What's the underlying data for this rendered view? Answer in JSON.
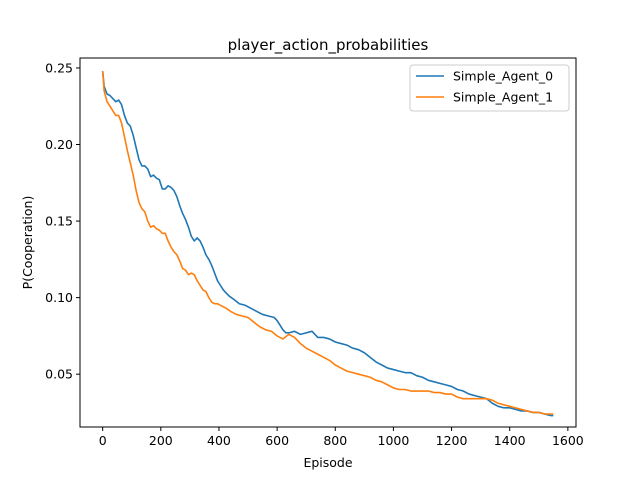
{
  "chart_data": {
    "type": "line",
    "title": "player_action_probabilities",
    "xlabel": "Episode",
    "ylabel": "P(Cooperation)",
    "xlim": [
      -78,
      1628
    ],
    "ylim": [
      0.0155,
      0.2565
    ],
    "xticks": [
      0,
      200,
      400,
      600,
      800,
      1000,
      1200,
      1400,
      1600
    ],
    "yticks": [
      0.05,
      0.1,
      0.15,
      0.2,
      0.25
    ],
    "xtick_labels": [
      "0",
      "200",
      "400",
      "600",
      "800",
      "1000",
      "1200",
      "1400",
      "1600"
    ],
    "ytick_labels": [
      "0.05",
      "0.10",
      "0.15",
      "0.20",
      "0.25"
    ],
    "grid": false,
    "legend_position": "top-right",
    "series": [
      {
        "name": "Simple_Agent_0",
        "color": "#1f77b4",
        "x": [
          0,
          5,
          15,
          25,
          35,
          45,
          55,
          65,
          75,
          85,
          95,
          105,
          115,
          125,
          135,
          145,
          155,
          165,
          175,
          185,
          195,
          205,
          215,
          225,
          235,
          245,
          255,
          265,
          275,
          285,
          295,
          305,
          315,
          325,
          335,
          345,
          355,
          365,
          375,
          385,
          395,
          405,
          415,
          425,
          435,
          450,
          470,
          490,
          510,
          530,
          550,
          570,
          590,
          600,
          610,
          620,
          630,
          640,
          660,
          680,
          700,
          720,
          740,
          760,
          780,
          800,
          820,
          840,
          860,
          880,
          900,
          920,
          940,
          960,
          980,
          1000,
          1020,
          1040,
          1060,
          1080,
          1100,
          1120,
          1140,
          1160,
          1180,
          1200,
          1220,
          1240,
          1260,
          1280,
          1300,
          1320,
          1340,
          1360,
          1380,
          1400,
          1420,
          1440,
          1460,
          1480,
          1500,
          1520,
          1540,
          1550
        ],
        "values": [
          0.248,
          0.238,
          0.233,
          0.232,
          0.23,
          0.228,
          0.229,
          0.226,
          0.219,
          0.214,
          0.212,
          0.206,
          0.198,
          0.19,
          0.186,
          0.186,
          0.184,
          0.179,
          0.18,
          0.178,
          0.177,
          0.171,
          0.171,
          0.173,
          0.172,
          0.17,
          0.166,
          0.16,
          0.155,
          0.151,
          0.146,
          0.14,
          0.137,
          0.139,
          0.137,
          0.133,
          0.128,
          0.125,
          0.121,
          0.116,
          0.111,
          0.108,
          0.105,
          0.103,
          0.101,
          0.099,
          0.096,
          0.095,
          0.093,
          0.091,
          0.089,
          0.088,
          0.087,
          0.085,
          0.082,
          0.079,
          0.077,
          0.077,
          0.078,
          0.076,
          0.077,
          0.078,
          0.074,
          0.074,
          0.073,
          0.071,
          0.07,
          0.069,
          0.067,
          0.066,
          0.064,
          0.061,
          0.058,
          0.056,
          0.054,
          0.053,
          0.052,
          0.051,
          0.051,
          0.049,
          0.048,
          0.046,
          0.045,
          0.044,
          0.043,
          0.042,
          0.04,
          0.039,
          0.037,
          0.036,
          0.035,
          0.034,
          0.031,
          0.029,
          0.028,
          0.028,
          0.027,
          0.026,
          0.026,
          0.025,
          0.025,
          0.024,
          0.023,
          0.023
        ]
      },
      {
        "name": "Simple_Agent_1",
        "color": "#ff7f0e",
        "x": [
          0,
          5,
          15,
          25,
          35,
          45,
          55,
          65,
          75,
          85,
          95,
          105,
          115,
          125,
          135,
          145,
          155,
          165,
          175,
          185,
          195,
          205,
          215,
          225,
          235,
          245,
          255,
          265,
          275,
          285,
          295,
          305,
          315,
          325,
          335,
          345,
          355,
          365,
          375,
          385,
          395,
          405,
          415,
          425,
          440,
          460,
          480,
          500,
          520,
          540,
          560,
          580,
          600,
          620,
          640,
          660,
          680,
          700,
          720,
          740,
          760,
          780,
          800,
          820,
          840,
          860,
          880,
          900,
          920,
          940,
          960,
          980,
          1000,
          1020,
          1040,
          1060,
          1080,
          1100,
          1120,
          1140,
          1160,
          1180,
          1200,
          1220,
          1240,
          1260,
          1280,
          1300,
          1320,
          1340,
          1360,
          1380,
          1400,
          1420,
          1440,
          1460,
          1480,
          1500,
          1520,
          1540,
          1550
        ],
        "values": [
          0.248,
          0.235,
          0.228,
          0.225,
          0.222,
          0.219,
          0.219,
          0.214,
          0.205,
          0.196,
          0.188,
          0.18,
          0.17,
          0.162,
          0.158,
          0.156,
          0.15,
          0.146,
          0.147,
          0.145,
          0.144,
          0.142,
          0.142,
          0.137,
          0.133,
          0.13,
          0.128,
          0.124,
          0.119,
          0.118,
          0.115,
          0.116,
          0.115,
          0.111,
          0.108,
          0.105,
          0.104,
          0.1,
          0.097,
          0.096,
          0.096,
          0.095,
          0.094,
          0.093,
          0.091,
          0.089,
          0.088,
          0.087,
          0.084,
          0.081,
          0.079,
          0.078,
          0.075,
          0.073,
          0.076,
          0.074,
          0.07,
          0.067,
          0.065,
          0.063,
          0.061,
          0.059,
          0.056,
          0.054,
          0.052,
          0.051,
          0.05,
          0.049,
          0.048,
          0.046,
          0.045,
          0.043,
          0.041,
          0.04,
          0.04,
          0.039,
          0.039,
          0.039,
          0.039,
          0.038,
          0.038,
          0.037,
          0.037,
          0.035,
          0.034,
          0.034,
          0.034,
          0.034,
          0.034,
          0.033,
          0.031,
          0.03,
          0.029,
          0.028,
          0.027,
          0.026,
          0.025,
          0.025,
          0.024,
          0.024,
          0.024
        ]
      }
    ]
  }
}
